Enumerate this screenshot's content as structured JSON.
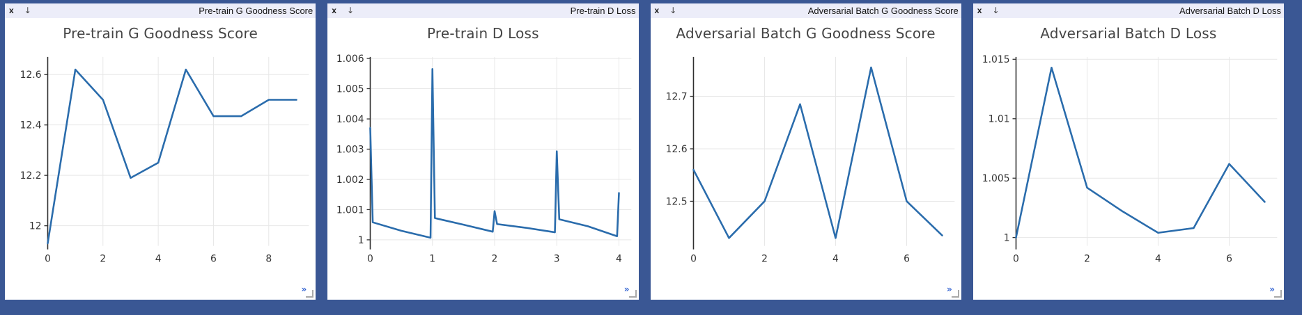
{
  "theme": {
    "background": "#3a5794",
    "titlebar_bg": "#ecedf9",
    "panel_bg": "#ffffff",
    "line_color": "#2a6cac",
    "grid_color": "#e7e7e7",
    "more_color": "#2d5fd0"
  },
  "chrome": {
    "close_glyph": "x",
    "download_glyph": "↓",
    "more_glyph": "»"
  },
  "panels": [
    {
      "title": "Pre-train G Goodness Score"
    },
    {
      "title": "Pre-train D Loss"
    },
    {
      "title": "Adversarial Batch G Goodness Score"
    },
    {
      "title": "Adversarial Batch D Loss"
    }
  ],
  "chart_data": [
    {
      "type": "line",
      "title": "Pre-train G Goodness Score",
      "xlabel": "",
      "ylabel": "",
      "grid": true,
      "legend": false,
      "line_color": "#2a6cac",
      "x": [
        0,
        1,
        2,
        3,
        4,
        5,
        6,
        7,
        8,
        9
      ],
      "y": [
        11.93,
        12.62,
        12.5,
        12.19,
        12.25,
        12.62,
        12.435,
        12.435,
        12.5,
        12.5
      ],
      "x_ticks": [
        0,
        2,
        4,
        6,
        8
      ],
      "x_tick_labels": [
        "0",
        "2",
        "4",
        "6",
        "8"
      ],
      "y_ticks": [
        12,
        12.2,
        12.4,
        12.6
      ],
      "y_tick_labels": [
        "12",
        "12.2",
        "12.4",
        "12.6"
      ],
      "xlim": [
        0,
        9.45
      ],
      "ylim": [
        11.92,
        12.67
      ]
    },
    {
      "type": "line",
      "title": "Pre-train D Loss",
      "xlabel": "",
      "ylabel": "",
      "grid": true,
      "legend": false,
      "line_color": "#2a6cac",
      "note": "sawtooth: vertical spike at each integer epoch then gradual decay",
      "x": [
        0,
        0.04,
        0.5,
        0.97,
        1,
        1.04,
        1.5,
        1.97,
        2,
        2.04,
        2.5,
        2.97,
        3,
        3.04,
        3.5,
        3.97,
        4
      ],
      "y": [
        1.0037,
        1.00058,
        1.0003,
        1.00007,
        1.00565,
        1.00072,
        1.0005,
        1.00027,
        1.00095,
        1.00052,
        1.0004,
        1.00025,
        1.00293,
        1.00068,
        1.00045,
        1.00012,
        1.00155
      ],
      "x_ticks": [
        0,
        1,
        2,
        3,
        4
      ],
      "x_tick_labels": [
        "0",
        "1",
        "2",
        "3",
        "4"
      ],
      "y_ticks": [
        1,
        1.001,
        1.002,
        1.003,
        1.004,
        1.005,
        1.006
      ],
      "y_tick_labels": [
        "1",
        "1.001",
        "1.002",
        "1.003",
        "1.004",
        "1.005",
        "1.006"
      ],
      "xlim": [
        0,
        4.2
      ],
      "ylim": [
        0.9998,
        1.00605
      ]
    },
    {
      "type": "line",
      "title": "Adversarial Batch G Goodness Score",
      "xlabel": "",
      "ylabel": "",
      "grid": true,
      "legend": false,
      "line_color": "#2a6cac",
      "x": [
        0,
        1,
        2,
        3,
        4,
        5,
        6,
        7
      ],
      "y": [
        12.56,
        12.43,
        12.5,
        12.685,
        12.43,
        12.755,
        12.5,
        12.435
      ],
      "x_ticks": [
        0,
        2,
        4,
        6
      ],
      "x_tick_labels": [
        "0",
        "2",
        "4",
        "6"
      ],
      "y_ticks": [
        12.5,
        12.6,
        12.7
      ],
      "y_tick_labels": [
        "12.5",
        "12.6",
        "12.7"
      ],
      "xlim": [
        0,
        7.35
      ],
      "ylim": [
        12.415,
        12.775
      ]
    },
    {
      "type": "line",
      "title": "Adversarial Batch D Loss",
      "xlabel": "",
      "ylabel": "",
      "grid": true,
      "legend": false,
      "line_color": "#2a6cac",
      "x": [
        0,
        1,
        2,
        3,
        4,
        5,
        6,
        7
      ],
      "y": [
        1.0,
        1.0143,
        1.0042,
        1.0022,
        1.0004,
        1.0008,
        1.0062,
        1.003
      ],
      "x_ticks": [
        0,
        2,
        4,
        6
      ],
      "x_tick_labels": [
        "0",
        "2",
        "4",
        "6"
      ],
      "y_ticks": [
        1,
        1.005,
        1.01,
        1.015
      ],
      "y_tick_labels": [
        "1",
        "1.005",
        "1.01",
        "1.015"
      ],
      "xlim": [
        0,
        7.35
      ],
      "ylim": [
        0.9993,
        1.0152
      ]
    }
  ]
}
